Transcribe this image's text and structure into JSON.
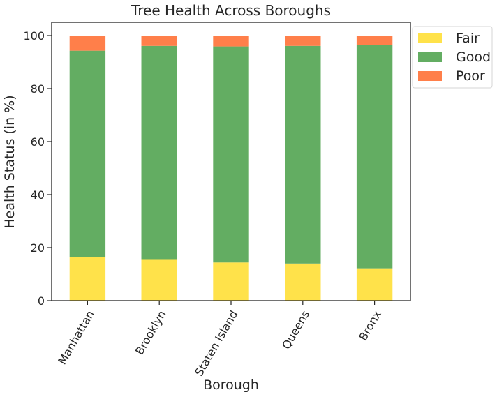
{
  "chart_data": {
    "type": "bar",
    "stacked": true,
    "title": "Tree Health Across Boroughs",
    "xlabel": "Borough",
    "ylabel": "Health Status (in %)",
    "categories": [
      "Manhattan",
      "Brooklyn",
      "Staten Island",
      "Queens",
      "Bronx"
    ],
    "series": [
      {
        "name": "Fair",
        "color": "#FFE24A",
        "values": [
          16.4,
          15.4,
          14.4,
          14.0,
          12.2
        ]
      },
      {
        "name": "Good",
        "color": "#63AD62",
        "values": [
          77.9,
          80.7,
          81.5,
          82.1,
          84.2
        ]
      },
      {
        "name": "Poor",
        "color": "#FF7F4A",
        "values": [
          5.7,
          3.9,
          4.1,
          3.9,
          3.6
        ]
      }
    ],
    "ylim": [
      0,
      105
    ],
    "yticks": [
      0,
      20,
      40,
      60,
      80,
      100
    ],
    "grid": false,
    "legend_position": "outside-top-right"
  }
}
